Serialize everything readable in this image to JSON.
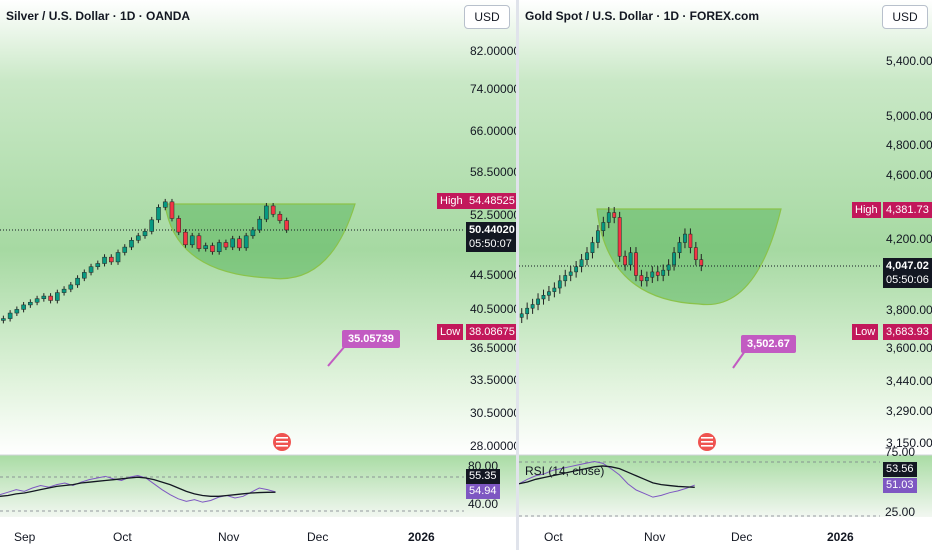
{
  "panels": [
    {
      "title": "Silver / U.S. Dollar · 1D · OANDA",
      "currency": "USD",
      "y_ticks": [
        "82.00000",
        "74.00000",
        "66.00000",
        "58.50000",
        "52.50000",
        "44.50000",
        "40.50000",
        "36.50000",
        "33.50000",
        "30.50000",
        "28.00000"
      ],
      "high_label": "High",
      "high_value": "54.48525",
      "low_label": "Low",
      "low_value": "38.08675",
      "last_price": "50.44020",
      "countdown": "05:50:07",
      "callout": "35.05739",
      "x_labels": [
        "Sep",
        "Oct",
        "Nov",
        "Dec",
        "2026"
      ],
      "rsi_ticks": [
        "80.00",
        "40.00"
      ],
      "rsi_value": "55.35",
      "rsi_ma_value": "54.94",
      "rsi_name": ""
    },
    {
      "title": "Gold Spot / U.S. Dollar · 1D · FOREX.com",
      "currency": "USD",
      "y_ticks": [
        "5,400.00",
        "5,000.00",
        "4,800.00",
        "4,600.00",
        "4,200.00",
        "3,800.00",
        "3,600.00",
        "3,440.00",
        "3,290.00",
        "3,150.00"
      ],
      "high_label": "High",
      "high_value": "4,381.73",
      "low_label": "Low",
      "low_value": "3,683.93",
      "last_price": "4,047.02",
      "countdown": "05:50:06",
      "callout": "3,502.67",
      "x_labels": [
        "Oct",
        "Nov",
        "Dec",
        "2026"
      ],
      "rsi_ticks": [
        "75.00",
        "25.00"
      ],
      "rsi_value": "53.56",
      "rsi_ma_value": "51.03",
      "rsi_name": "RSI (14, close)"
    }
  ],
  "colors": {
    "up": "#089981",
    "down": "#f23645",
    "pattern": "#6cc07a",
    "callout": "#c25bc2",
    "high_low": "#c2185b",
    "rsi": "#7e57c2"
  },
  "chart_data": [
    {
      "type": "candlestick",
      "title": "Silver / U.S. Dollar · 1D · OANDA",
      "x_labels": [
        "Sep",
        "Oct",
        "Nov",
        "Dec",
        "2026"
      ],
      "y_scale": "log",
      "ylim": [
        26.5,
        90
      ],
      "close": [
        39.6,
        40.2,
        40.6,
        41.1,
        41.4,
        41.8,
        42.1,
        41.6,
        42.5,
        42.9,
        43.4,
        44.2,
        44.9,
        45.6,
        46.0,
        46.8,
        46.2,
        47.4,
        48.1,
        49.0,
        49.6,
        50.2,
        51.8,
        53.6,
        54.4,
        52.0,
        50.1,
        48.4,
        49.6,
        47.9,
        48.3,
        47.5,
        48.7,
        48.1,
        49.2,
        48.0,
        49.6,
        50.4,
        51.9,
        53.8,
        52.6,
        51.7,
        50.4
      ],
      "high": 54.48525,
      "low": 38.08675,
      "last": 50.4402,
      "target": 35.05739,
      "rsi": {
        "period": 14,
        "values": [
          52,
          55,
          58,
          56,
          60,
          63,
          61,
          64,
          66,
          63,
          67,
          70,
          72,
          74,
          71,
          69,
          73,
          75,
          72,
          65,
          58,
          52,
          47,
          44,
          46,
          43,
          45,
          49,
          51,
          48,
          50,
          55,
          60,
          58,
          55.35
        ],
        "ma": [
          50,
          51,
          53,
          54,
          56,
          58,
          60,
          62,
          63,
          64,
          66,
          67,
          68,
          69,
          70,
          71,
          72,
          73,
          72,
          70,
          67,
          64,
          60,
          56,
          53,
          51,
          50,
          50,
          51,
          52,
          53,
          54,
          54.5,
          54.8,
          54.94
        ]
      }
    },
    {
      "type": "candlestick",
      "title": "Gold Spot / U.S. Dollar · 1D · FOREX.com",
      "x_labels": [
        "Oct",
        "Nov",
        "Dec",
        "2026"
      ],
      "y_scale": "log",
      "ylim": [
        3100,
        5600
      ],
      "close": [
        3780,
        3810,
        3830,
        3860,
        3880,
        3900,
        3920,
        3960,
        3990,
        4010,
        4040,
        4080,
        4120,
        4180,
        4250,
        4300,
        4360,
        4330,
        4100,
        4050,
        4120,
        3990,
        3960,
        3980,
        4010,
        3990,
        4020,
        4050,
        4120,
        4180,
        4230,
        4150,
        4080,
        4047
      ],
      "high": 4381.73,
      "low": 3683.93,
      "last": 4047.02,
      "target": 3502.67,
      "rsi": {
        "period": 14,
        "values": [
          55,
          60,
          64,
          66,
          70,
          72,
          74,
          76,
          78,
          80,
          78,
          72,
          65,
          55,
          48,
          44,
          40,
          42,
          45,
          47,
          50,
          53.56
        ],
        "ma": [
          55,
          57,
          60,
          62,
          64,
          66,
          68,
          70,
          72,
          74,
          75,
          74,
          72,
          68,
          64,
          60,
          56,
          54,
          53,
          52,
          51.5,
          51.03
        ]
      }
    }
  ]
}
